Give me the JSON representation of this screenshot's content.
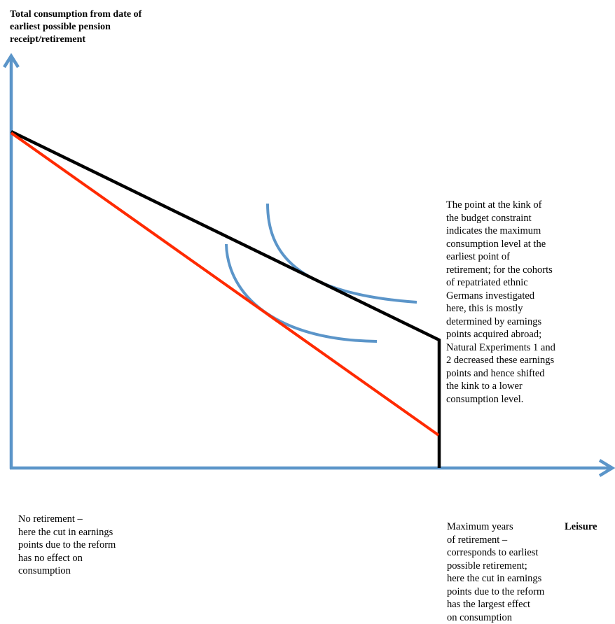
{
  "diagram": {
    "y_axis_title": "Total consumption from date of\nearliest possible pension\nreceipt/retirement",
    "x_axis_title": "Leisure",
    "kink_annotation": "The point at the kink of\nthe budget constraint\nindicates the maximum\nconsumption level at the\nearliest point of\nretirement; for the cohorts\nof repatriated ethnic\nGermans investigated\nhere, this is mostly\ndetermined by earnings\npoints acquired abroad;\nNatural Experiments 1 and\n2 decreased these earnings\npoints and hence shifted\nthe kink to a lower\nconsumption level.",
    "origin_annotation": "No retirement –\nhere the cut in earnings\npoints due to the reform\nhas no effect on\nconsumption",
    "max_retirement_annotation": "Maximum years\nof retirement –\ncorresponds to earliest\npossible retirement;\nhere the cut in earnings\npoints due to the reform\nhas the largest effect\non consumption",
    "colors": {
      "axis": "#5b95c9",
      "budget_constraint_before": "#000000",
      "budget_constraint_after": "#ff2a00",
      "indifference_curves": "#5b95c9"
    }
  }
}
